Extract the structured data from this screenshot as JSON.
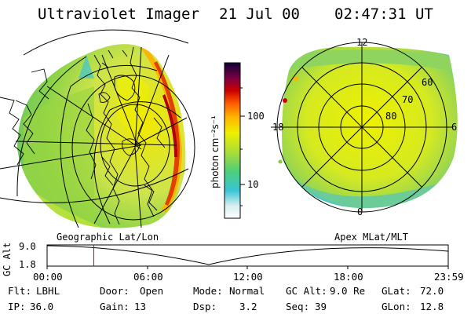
{
  "header": {
    "title": "Ultraviolet Imager",
    "date": "21 Jul 00",
    "time": "02:47:31 UT"
  },
  "colorbar": {
    "unit_label": "photon cm⁻²s⁻¹",
    "ticks": [
      "100",
      "10"
    ]
  },
  "panels": {
    "left_label": "Geographic Lat/Lon",
    "right_label": "Apex MLat/MLT",
    "mlt_labels": [
      "12",
      "18",
      "6",
      "0"
    ],
    "mlat_labels": [
      "60",
      "70",
      "80"
    ]
  },
  "altitude_plot": {
    "axis_label": "GC Alt",
    "y_ticks": [
      "9.0",
      "1.8"
    ],
    "x_ticks": [
      "00:00",
      "06:00",
      "12:00",
      "18:00",
      "23:59"
    ],
    "current_time_fraction": 0.1163
  },
  "footer": {
    "row1": [
      {
        "label": "Flt:",
        "value": "LBHL"
      },
      {
        "label": "Door:",
        "value": "Open"
      },
      {
        "label": "Mode:",
        "value": "Normal"
      },
      {
        "label": "GC Alt:",
        "value": "9.0 Re"
      },
      {
        "label": "GLat:",
        "value": "72.0"
      }
    ],
    "row2": [
      {
        "label": "IP:",
        "value": "36.0"
      },
      {
        "label": "Gain:",
        "value": "13"
      },
      {
        "label": "Dsp:",
        "value": "3.2"
      },
      {
        "label": "Seq:",
        "value": "39"
      },
      {
        "label": "GLon:",
        "value": "12.8"
      }
    ]
  },
  "colors": {
    "marker": "#cc0000",
    "dark_aurora": "#d40000",
    "bright_yellow": "#eef000",
    "green": "#7ed03a",
    "cyan": "#39c8d8"
  }
}
